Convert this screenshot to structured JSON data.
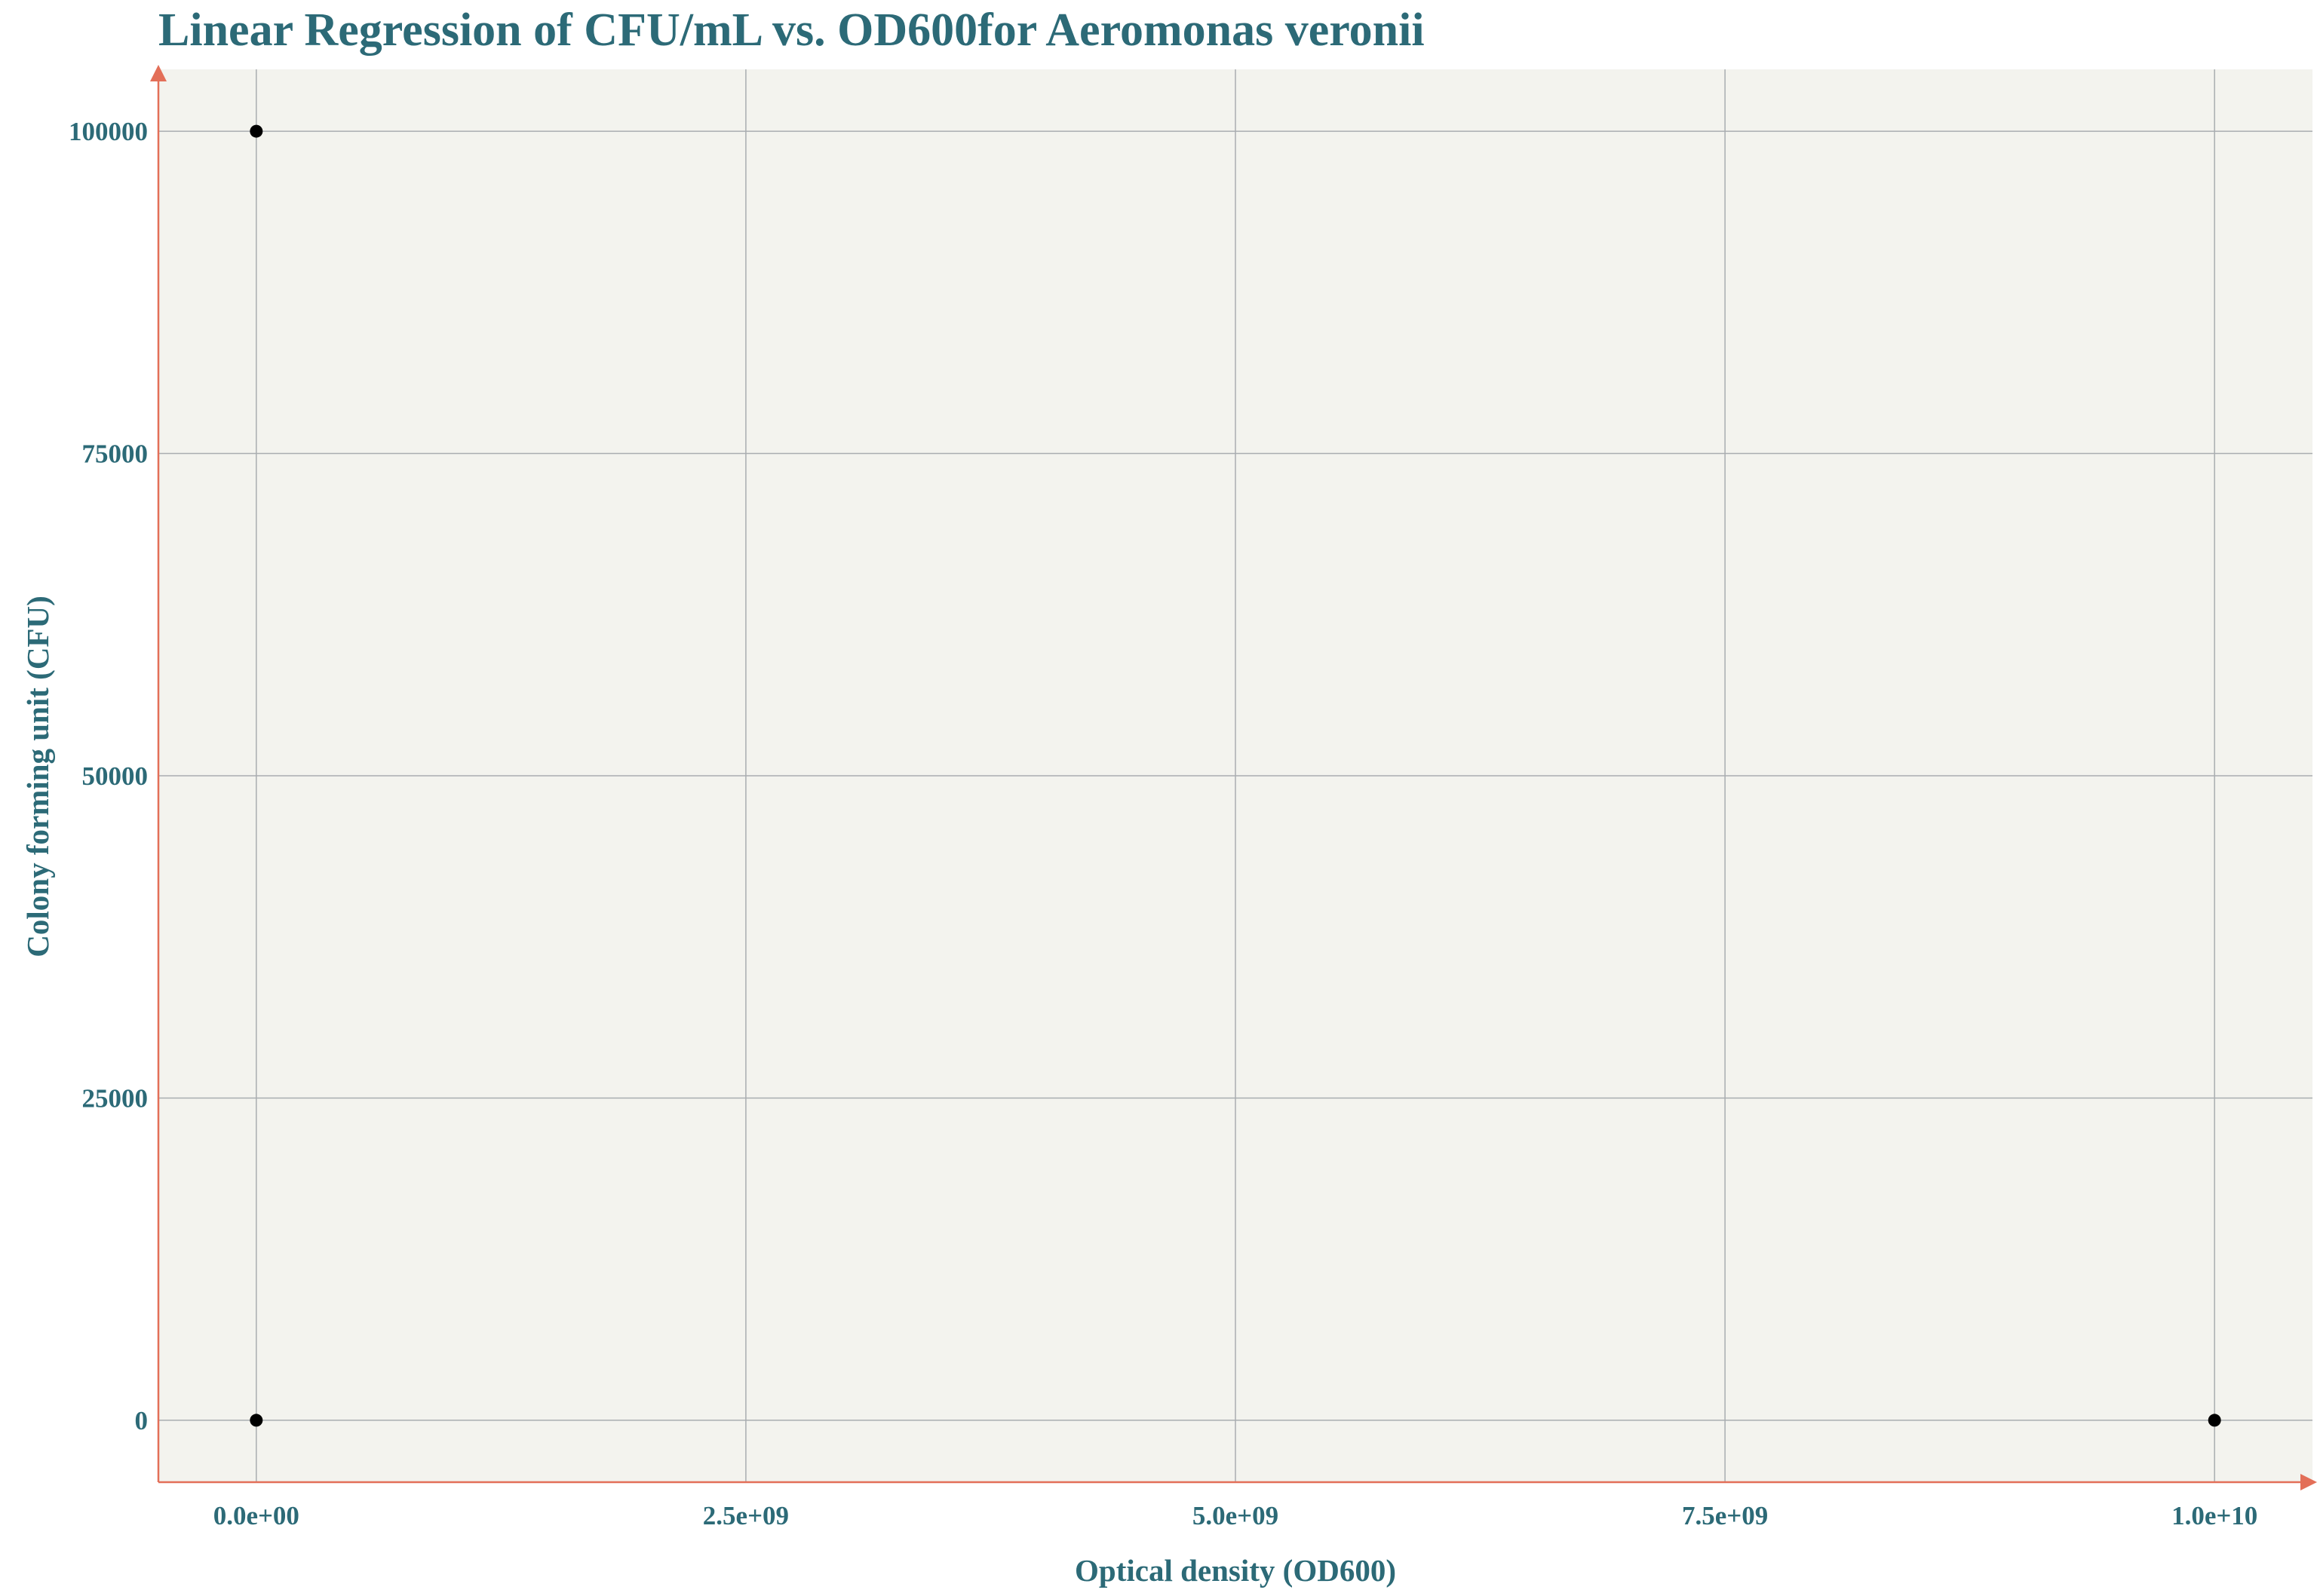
{
  "chart_data": {
    "type": "scatter",
    "title": "Linear Regression of CFU/mL vs. OD600for Aeromonas veronii",
    "xlabel": "Optical density (OD600)",
    "ylabel": "Colony forming unit (CFU)",
    "xlim": [
      -500000000,
      10500000000
    ],
    "ylim": [
      -4800,
      104800
    ],
    "x_ticks": [
      0,
      2500000000,
      5000000000,
      7500000000,
      10000000000
    ],
    "x_tick_labels": [
      "0.0e+00",
      "2.5e+09",
      "5.0e+09",
      "7.5e+09",
      "1.0e+10"
    ],
    "y_ticks": [
      0,
      25000,
      50000,
      75000,
      100000
    ],
    "y_tick_labels": [
      "0",
      "25000",
      "50000",
      "75000",
      "100000"
    ],
    "grid": true,
    "legend": false,
    "series": [
      {
        "points": [
          {
            "x": 0,
            "y": 100000
          },
          {
            "x": 0,
            "y": 0
          },
          {
            "x": 10000000000,
            "y": 0
          }
        ]
      }
    ],
    "colors": {
      "text": "#2c6a77",
      "axis": "#e36f58",
      "grid": "#a9adb0",
      "plot_background": "#f3f3ee",
      "marker": "#000000"
    }
  }
}
